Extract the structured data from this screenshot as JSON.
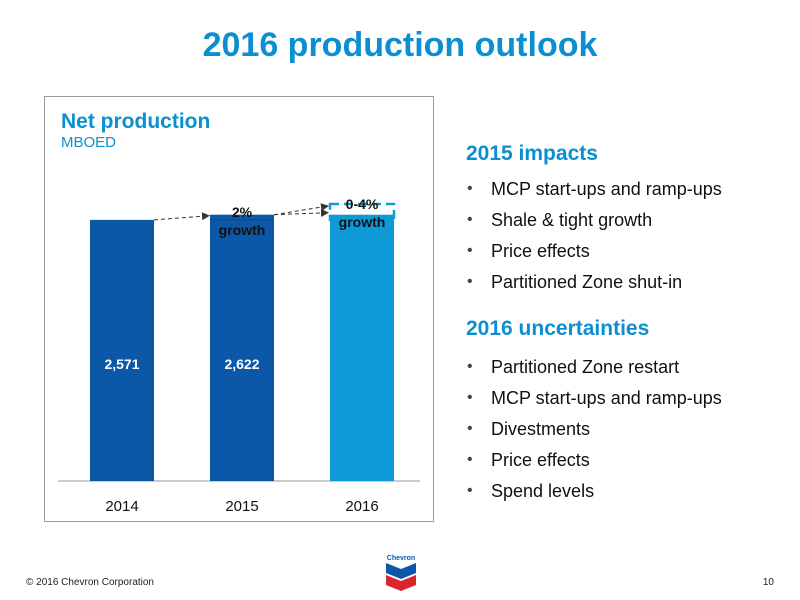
{
  "slide": {
    "title": "2016 production outlook",
    "page_number": "10",
    "copyright": "© 2016 Chevron Corporation",
    "logo_text": "Chevron"
  },
  "colors": {
    "title": "#0b8fd1",
    "bar_dark": "#0b57a8",
    "bar_light": "#0e9ad7"
  },
  "chart_data": {
    "type": "bar",
    "title": "Net production",
    "ylabel": "MBOED",
    "categories": [
      "2014",
      "2015",
      "2016"
    ],
    "values": [
      2571,
      2622,
      2622
    ],
    "data_labels": [
      "2,571",
      "2,622",
      ""
    ],
    "ylim": [
      0,
      3200
    ],
    "forecast_range": [
      2622,
      2727
    ],
    "annotations": [
      "2%\ngrowth",
      "0-4%\ngrowth"
    ],
    "grid": false
  },
  "impacts": {
    "heading": "2015 impacts",
    "items": [
      "MCP start-ups and ramp-ups",
      "Shale & tight growth",
      "Price effects",
      "Partitioned Zone shut-in"
    ]
  },
  "uncertainties": {
    "heading": "2016 uncertainties",
    "items": [
      "Partitioned Zone restart",
      "MCP start-ups and ramp-ups",
      "Divestments",
      "Price effects",
      "Spend levels"
    ]
  }
}
